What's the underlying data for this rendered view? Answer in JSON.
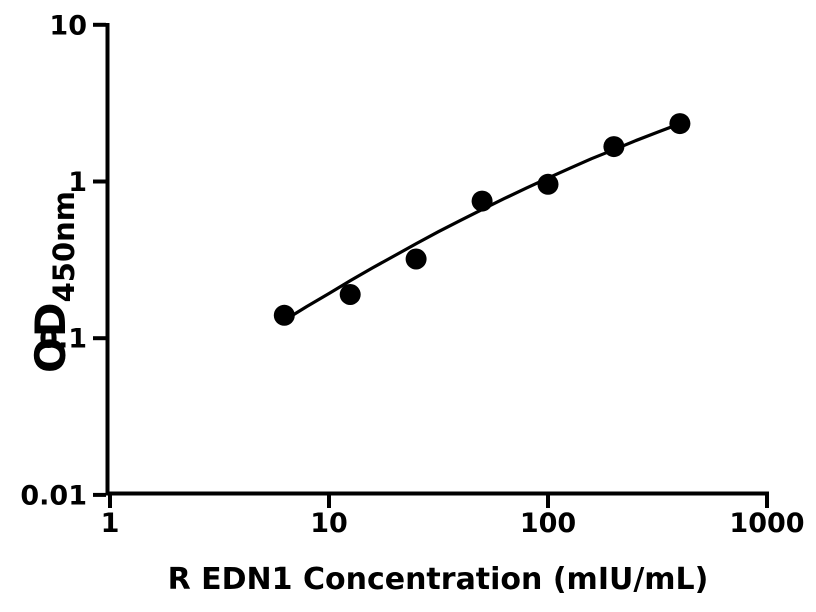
{
  "figure": {
    "background_color": "#ffffff",
    "ink_color": "#000000"
  },
  "chart_data": {
    "type": "scatter",
    "title": "",
    "xlabel": "R EDN1 Concentration (mIU/mL)",
    "ylabel_main": "OD",
    "ylabel_sub": "450nm",
    "x_scale": "log",
    "y_scale": "log",
    "xlim": [
      1,
      1000
    ],
    "ylim": [
      0.01,
      10
    ],
    "grid": false,
    "legend_position": "none",
    "x_ticks": [
      {
        "value": 1,
        "label": "1"
      },
      {
        "value": 10,
        "label": "10"
      },
      {
        "value": 100,
        "label": "100"
      },
      {
        "value": 1000,
        "label": "1000"
      }
    ],
    "y_ticks": [
      {
        "value": 10,
        "label": "10"
      },
      {
        "value": 1,
        "label": "1"
      },
      {
        "value": 0.1,
        "label": "0.1"
      },
      {
        "value": 0.01,
        "label": "0.01"
      }
    ],
    "series": [
      {
        "name": "standard-curve-points",
        "marker": "circle",
        "color": "#000000",
        "x": [
          6.25,
          12.5,
          25,
          50,
          100,
          200,
          400
        ],
        "y": [
          0.14,
          0.19,
          0.32,
          0.75,
          0.96,
          1.67,
          2.34
        ]
      }
    ],
    "fit_curve": {
      "name": "fitted-curve",
      "color": "#000000",
      "x": [
        6.2,
        7.9,
        10,
        12.6,
        15.8,
        20,
        25.1,
        31.6,
        39.8,
        50.1,
        63.1,
        79.4,
        100,
        126,
        158,
        200,
        251,
        316,
        404
      ],
      "y": [
        0.129,
        0.159,
        0.193,
        0.234,
        0.281,
        0.337,
        0.402,
        0.478,
        0.565,
        0.664,
        0.778,
        0.906,
        1.051,
        1.216,
        1.397,
        1.596,
        1.82,
        2.064,
        2.35
      ]
    }
  }
}
